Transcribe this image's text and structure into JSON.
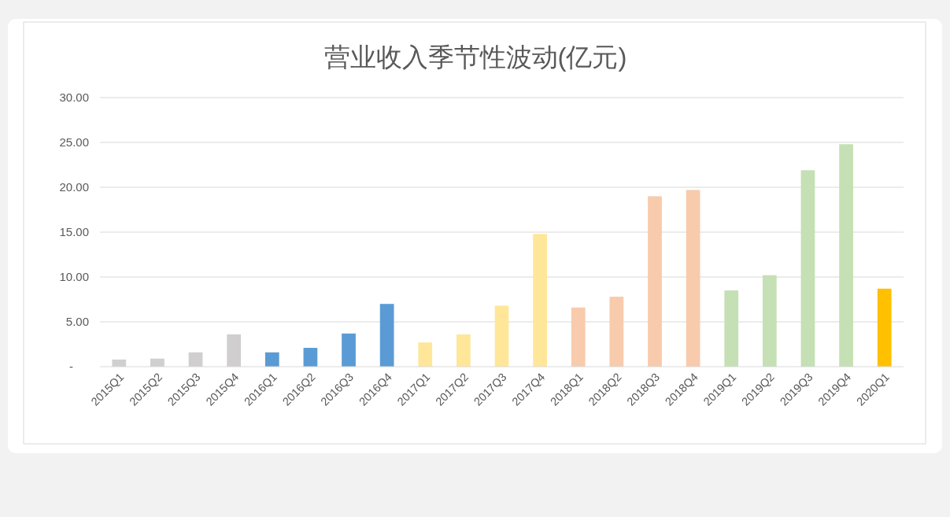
{
  "chart_data": {
    "type": "bar",
    "title": "营业收入季节性波动(亿元)",
    "categories": [
      "2015Q1",
      "2015Q2",
      "2015Q3",
      "2015Q4",
      "2016Q1",
      "2016Q2",
      "2016Q3",
      "2016Q4",
      "2017Q1",
      "2017Q2",
      "2017Q3",
      "2017Q4",
      "2018Q1",
      "2018Q2",
      "2018Q3",
      "2018Q4",
      "2019Q1",
      "2019Q2",
      "2019Q3",
      "2019Q4",
      "2020Q1"
    ],
    "values": [
      0.8,
      0.9,
      1.6,
      3.6,
      1.6,
      2.1,
      3.7,
      7.0,
      2.7,
      3.6,
      6.8,
      14.8,
      6.6,
      7.8,
      19.0,
      19.7,
      8.5,
      10.2,
      21.9,
      24.8,
      8.7
    ],
    "colors": [
      "#d0cece",
      "#d0cece",
      "#d0cece",
      "#d0cece",
      "#5b9bd5",
      "#5b9bd5",
      "#5b9bd5",
      "#5b9bd5",
      "#ffe699",
      "#ffe699",
      "#ffe699",
      "#ffe699",
      "#f8cbad",
      "#f8cbad",
      "#f8cbad",
      "#f8cbad",
      "#c5e0b4",
      "#c5e0b4",
      "#c5e0b4",
      "#c5e0b4",
      "#ffc000"
    ],
    "ylim": [
      0,
      30
    ],
    "yticks": [
      {
        "value": 0,
        "label": "-"
      },
      {
        "value": 5,
        "label": "5.00"
      },
      {
        "value": 10,
        "label": "10.00"
      },
      {
        "value": 15,
        "label": "15.00"
      },
      {
        "value": 20,
        "label": "20.00"
      },
      {
        "value": 25,
        "label": "25.00"
      },
      {
        "value": 30,
        "label": "30.00"
      }
    ],
    "grid": "y"
  }
}
